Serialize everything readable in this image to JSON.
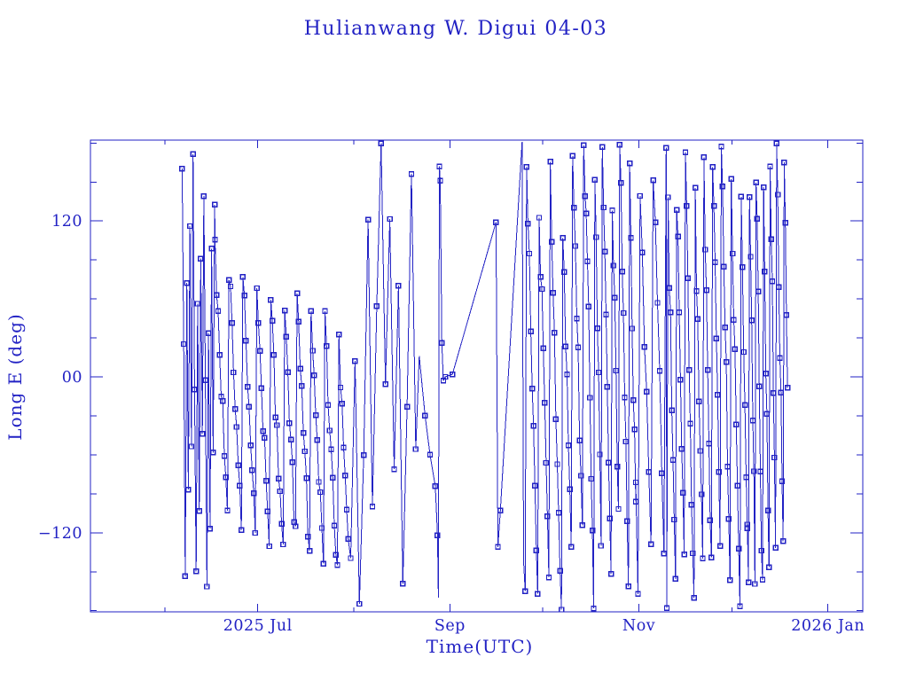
{
  "colors": {
    "accent": "#2222c4",
    "background": "#ffffff"
  },
  "chart_data": {
    "type": "line",
    "title": "Hulianwang W. Digui 04-03",
    "xlabel": "Time(UTC)",
    "ylabel": "Long E (deg)",
    "marker": "open-square",
    "grid": false,
    "legend": "none",
    "x_epoch": "2025-05-08",
    "x_span_days": 249,
    "ylim": [
      -182,
      182
    ],
    "y_ticks_major": {
      "values": [
        120,
        0,
        -120
      ],
      "labels": [
        "120",
        "00",
        "−120"
      ]
    },
    "y_minor_step": 30,
    "y_minor_range": [
      -180,
      180
    ],
    "x_ticks": [
      {
        "day": 24,
        "label": ""
      },
      {
        "day": 54,
        "label": "2025 Jul"
      },
      {
        "day": 85,
        "label": ""
      },
      {
        "day": 116,
        "label": "Sep"
      },
      {
        "day": 146,
        "label": ""
      },
      {
        "day": 177,
        "label": "Nov"
      },
      {
        "day": 207,
        "label": ""
      },
      {
        "day": 238,
        "label": "2026 Jan"
      }
    ],
    "seed": 9,
    "phases": [
      {
        "type": "drift",
        "t0": 29.6,
        "t1": 40.2,
        "dt": 0.5,
        "L0": 170,
        "rate": -312,
        "jitter": 16
      },
      {
        "type": "saw",
        "t0": 40.2,
        "t1": 83.5,
        "dt": 0.5,
        "period": 4.4,
        "top0": 96,
        "top1": 44,
        "bot0": -118,
        "bot1": -164,
        "jitter": 13
      },
      {
        "type": "drift",
        "t0": 84.0,
        "t1": 105.5,
        "dt": 1.4,
        "rate": -152,
        "jitter": 24
      },
      {
        "type": "points",
        "pts": [
          [
            106.1,
            16,
            0
          ],
          [
            108.0,
            -30,
            1
          ],
          [
            109.6,
            -60,
            1
          ],
          [
            111.3,
            -84,
            1
          ],
          [
            112.0,
            -122,
            1
          ],
          [
            112.3,
            -170,
            0
          ],
          [
            112.6,
            162,
            1
          ],
          [
            112.9,
            151,
            1
          ],
          [
            113.4,
            26,
            1
          ],
          [
            113.9,
            -3,
            1
          ],
          [
            114.5,
            0,
            1
          ],
          [
            116.8,
            2,
            1
          ],
          [
            130.9,
            119,
            1
          ],
          [
            131.5,
            -131,
            1
          ],
          [
            132.3,
            -103,
            1
          ],
          [
            139.3,
            181,
            0
          ],
          [
            139.8,
            -142,
            0
          ]
        ]
      },
      {
        "type": "drift",
        "t0": 140.3,
        "t1": 160.0,
        "dt": 0.45,
        "L0": -150,
        "rate": -96,
        "jitter": 18
      },
      {
        "type": "drift",
        "t0": 160.0,
        "t1": 176.0,
        "dt": 0.4,
        "rate": -128,
        "jitter": 20
      },
      {
        "type": "drift",
        "t0": 176.0,
        "t1": 186.0,
        "dt": 0.7,
        "rate": -82,
        "jitter": 15
      },
      {
        "type": "drift",
        "t0": 186.0,
        "t1": 212.0,
        "dt": 0.4,
        "rate": -122,
        "jitter": 20
      },
      {
        "type": "drift",
        "t0": 212.0,
        "t1": 225.2,
        "dt": 0.35,
        "rate": -158,
        "jitter": 22
      }
    ]
  }
}
